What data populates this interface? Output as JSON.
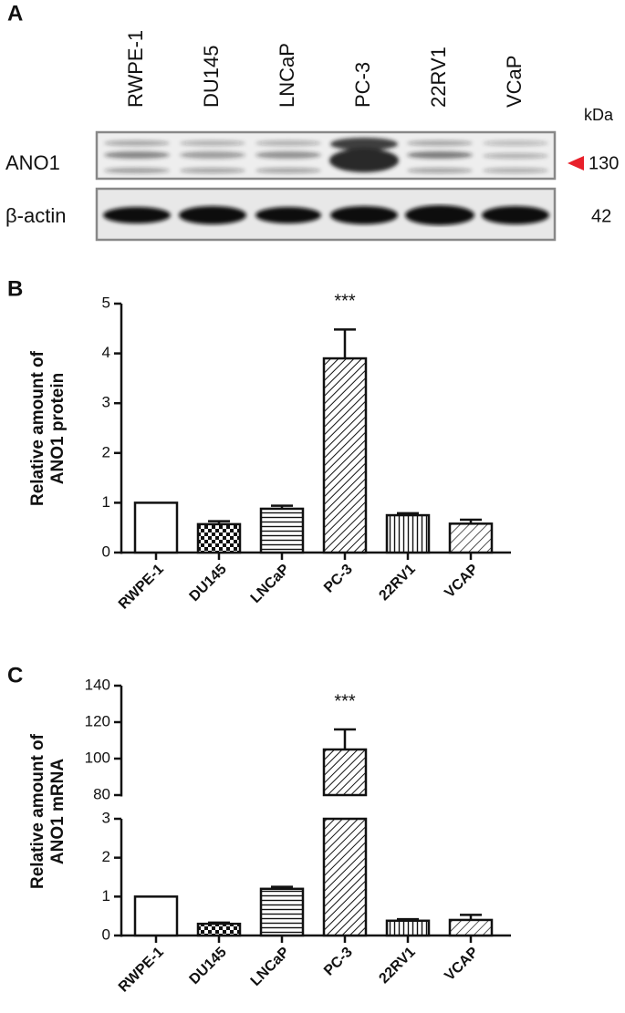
{
  "blot": {
    "panel_label": "A",
    "lanes": [
      "RWPE-1",
      "DU145",
      "LNCaP",
      "PC-3",
      "22RV1",
      "VCaP"
    ],
    "kda_header": "kDa",
    "rows": [
      {
        "label": "ANO1",
        "kda": 130
      },
      {
        "label": "β-actin",
        "kda": 42
      }
    ]
  },
  "chart_data": [
    {
      "type": "bar",
      "panel_label": "B",
      "y_label": [
        "Relative amount of",
        "ANO1 protein"
      ],
      "categories": [
        "RWPE-1",
        "DU145",
        "LNCaP",
        "PC-3",
        "22RV1",
        "VCAP"
      ],
      "values": [
        1.0,
        0.57,
        0.88,
        3.9,
        0.75,
        0.58
      ],
      "errors": [
        0,
        0.06,
        0.06,
        0.58,
        0.04,
        0.08
      ],
      "significance": [
        null,
        null,
        null,
        "***",
        null,
        null
      ],
      "patterns": [
        "none",
        "checker",
        "horizontal",
        "diagonal",
        "vertical",
        "diagonal-light"
      ],
      "ylim": [
        0,
        5
      ],
      "yticks": [
        0,
        1,
        2,
        3,
        4,
        5
      ]
    },
    {
      "type": "bar",
      "panel_label": "C",
      "y_label": [
        "Relative amount of",
        "ANO1 mRNA"
      ],
      "categories": [
        "RWPE-1",
        "DU145",
        "LNCaP",
        "PC-3",
        "22RV1",
        "VCAP"
      ],
      "values": [
        1.0,
        0.3,
        1.2,
        105,
        0.38,
        0.4
      ],
      "errors": [
        0,
        0.03,
        0.05,
        11,
        0.04,
        0.13
      ],
      "significance": [
        null,
        null,
        null,
        "***",
        null,
        null
      ],
      "patterns": [
        "none",
        "checker",
        "horizontal",
        "diagonal",
        "vertical",
        "diagonal-light"
      ],
      "axis_segments": [
        {
          "ylim": [
            0,
            3
          ],
          "yticks": [
            0,
            1,
            2,
            3
          ]
        },
        {
          "ylim": [
            80,
            140
          ],
          "yticks": [
            80,
            100,
            120,
            140
          ]
        }
      ]
    }
  ]
}
